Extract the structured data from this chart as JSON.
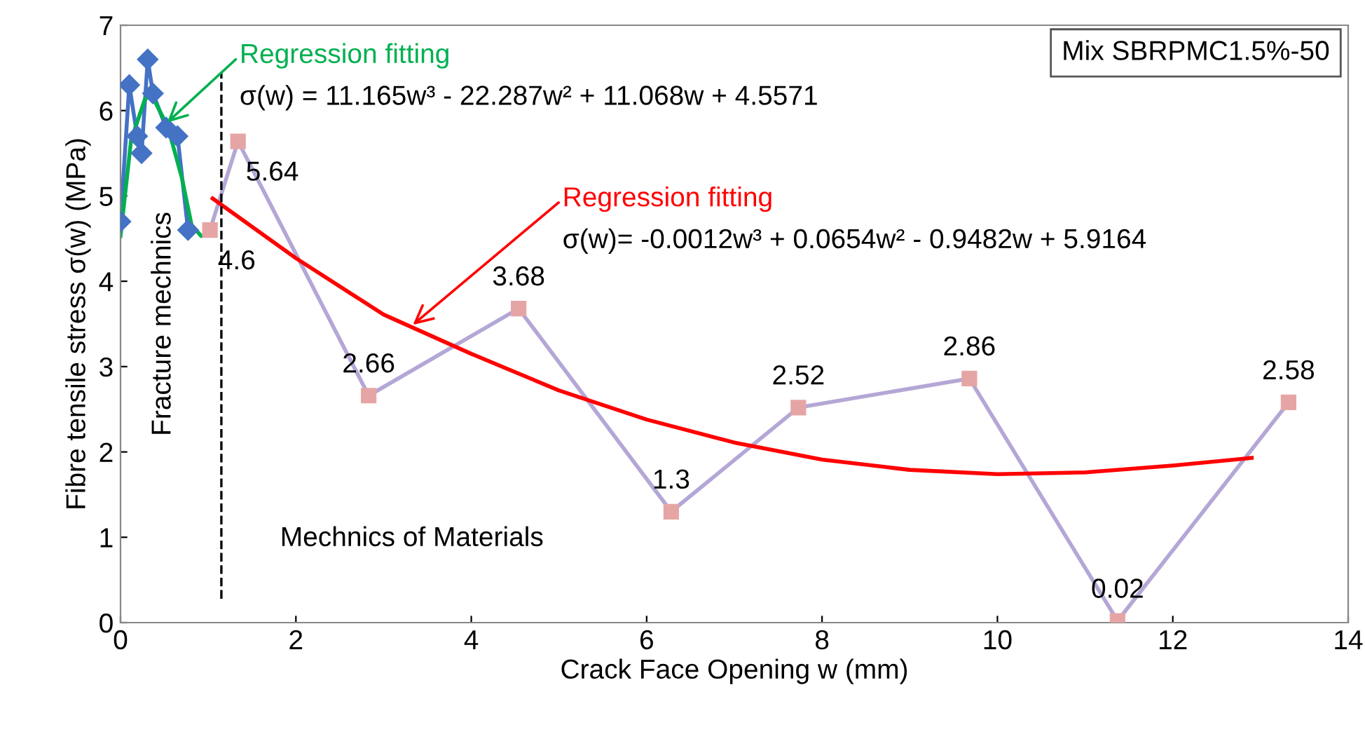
{
  "chart_data": {
    "type": "line",
    "xlabel": "Crack Face Opening w (mm)",
    "ylabel": "Fibre tensile stress σ(w) (MPa)",
    "xlim": [
      0,
      14
    ],
    "xticks": [
      0,
      2,
      4,
      6,
      8,
      10,
      12,
      14
    ],
    "ylim": [
      0,
      7
    ],
    "yticks": [
      0,
      1,
      2,
      3,
      4,
      5,
      6,
      7
    ],
    "grid": false,
    "legend": false,
    "series": [
      {
        "color": "#4472c4",
        "marker": "diamond",
        "x": [
          0,
          0.1,
          0.19,
          0.24,
          0.31,
          0.37,
          0.52,
          0.65,
          0.77
        ],
        "values": [
          4.7,
          6.3,
          5.7,
          5.5,
          6.6,
          6.2,
          5.8,
          5.7,
          4.6
        ]
      },
      {
        "color": "#b4a7d6",
        "colors": [
          "#e6a5a5",
          "#e6a5a5",
          "#e6a5a5",
          "#e6a5a5",
          "#e6a5a5",
          "#e6a5a5",
          "#e6a5a5",
          "#e6a5a5",
          "#e6a5a5"
        ],
        "marker": "square",
        "x": [
          1.02,
          1.34,
          2.83,
          4.54,
          6.28,
          7.73,
          9.68,
          11.37,
          13.32
        ],
        "values": [
          4.6,
          5.64,
          2.66,
          3.68,
          1.3,
          2.52,
          2.86,
          0.02,
          2.58
        ],
        "value_labels": [
          "4.6",
          "5.64",
          "2.66",
          "3.68",
          "1.3",
          "2.52",
          "2.86",
          "0.02",
          "2.58"
        ]
      },
      {
        "color": "#00b050",
        "marker": "none",
        "x": [
          0.0,
          0.12,
          0.28,
          0.36,
          0.54,
          0.7,
          0.81,
          0.92,
          1.02
        ],
        "values": [
          4.53,
          5.65,
          6.14,
          6.17,
          5.81,
          5.21,
          4.66,
          4.53,
          4.55
        ]
      },
      {
        "color": "#ff0000",
        "marker": "none",
        "x": [
          1.05,
          2,
          3,
          4,
          5,
          6,
          7,
          8,
          9,
          10,
          11,
          12,
          12.9
        ],
        "values": [
          4.97,
          4.27,
          3.61,
          3.15,
          2.72,
          2.38,
          2.11,
          1.91,
          1.79,
          1.74,
          1.76,
          1.84,
          1.93
        ]
      }
    ],
    "ref_lines": [
      {
        "axis": "x",
        "value": 1.15,
        "color": "#000000",
        "line_style": "dashed"
      }
    ],
    "annotations": [
      {
        "text": "Regression fitting\nσ(w) = 11.165w³ - 22.287w² + 11.068w + 4.5571",
        "x": 0.5,
        "y": 5.83
      },
      {
        "text": "Regression fitting\nσ(w)= -0.0012w³ + 0.0654w² - 0.9482w + 5.9164",
        "x": 3.3,
        "y": 3.46
      },
      "Fracture mechnics",
      "Mechnics of Materials",
      "Mix SBRPMC1.5%-50"
    ]
  }
}
